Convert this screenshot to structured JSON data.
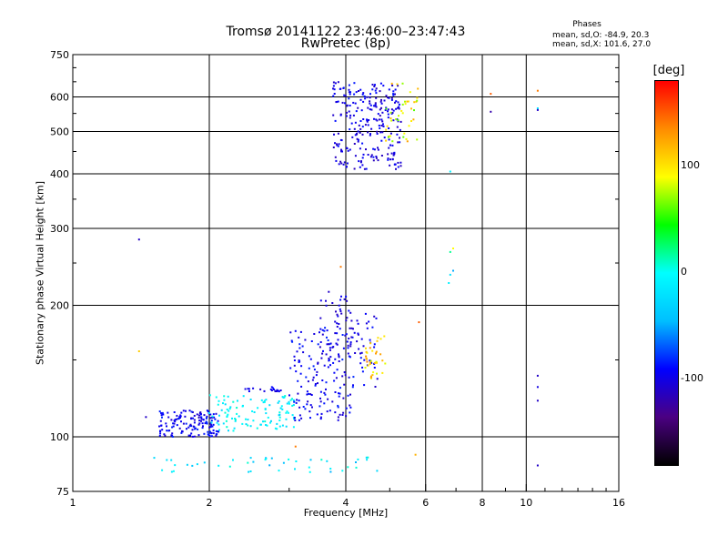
{
  "header": {
    "title_line1": "Tromsø 20141122 23:46:00–23:47:43",
    "title_line2": "RwPretec (8p)"
  },
  "legend": {
    "title": "Phases",
    "stats": [
      "mean, sd,O: -84.9, 20.3",
      "mean, sd,X: 101.6, 27.0"
    ]
  },
  "colorbar": {
    "unit": "[deg]",
    "ticks": [
      "100",
      "0",
      "-100"
    ],
    "tick_values": [
      100,
      0,
      -100
    ],
    "range": [
      -180,
      180
    ],
    "colors": [
      "#000000",
      "#4b0082",
      "#0000ff",
      "#00bfff",
      "#00ffff",
      "#00ff00",
      "#ffff00",
      "#ff8c00",
      "#ff0000"
    ]
  },
  "chart_data": {
    "type": "scatter",
    "title": "Tromsø 20141122 23:46:00–23:47:43",
    "subtitle": "RwPretec (8p)",
    "xlabel": "Frequency [MHz]",
    "ylabel": "Stationary phase Virtual Height [km]",
    "x_scale": "log",
    "y_scale": "log",
    "xlim": [
      1,
      16
    ],
    "ylim": [
      75,
      750
    ],
    "x_ticks": [
      1,
      2,
      4,
      6,
      8,
      10,
      16
    ],
    "x_tick_labels": [
      "1",
      "2",
      "4",
      "6",
      "8",
      "10",
      "16"
    ],
    "y_ticks": [
      75,
      100,
      200,
      300,
      400,
      500,
      600,
      750
    ],
    "y_tick_labels": [
      "75",
      "100",
      "200",
      "300",
      "400",
      "500",
      "600",
      "750"
    ],
    "grid": true,
    "x_gridlines": [
      2,
      4,
      6,
      8,
      10
    ],
    "y_gridlines": [
      100,
      200,
      300,
      400,
      500,
      600
    ],
    "color_by": "phase [deg]",
    "clusters": [
      {
        "x_range": [
          3.75,
          5.3
        ],
        "y_range": [
          410,
          650
        ],
        "n": 260,
        "phase": [
          -115,
          -85
        ]
      },
      {
        "x_range": [
          4.9,
          5.8
        ],
        "y_range": [
          470,
          650
        ],
        "n": 40,
        "phase": [
          60,
          130
        ]
      },
      {
        "x_range": [
          1.55,
          2.1
        ],
        "y_range": [
          100,
          115
        ],
        "n": 150,
        "phase": [
          -110,
          -80
        ]
      },
      {
        "x_range": [
          2.0,
          3.1
        ],
        "y_range": [
          103,
          125
        ],
        "n": 110,
        "phase": [
          -30,
          10
        ]
      },
      {
        "x_range": [
          2.4,
          2.9
        ],
        "y_range": [
          127,
          130
        ],
        "n": 20,
        "phase": [
          -110,
          -90
        ]
      },
      {
        "x_range": [
          3.0,
          4.2
        ],
        "y_range": [
          108,
          180
        ],
        "n": 160,
        "phase": [
          -110,
          -80
        ]
      },
      {
        "x_range": [
          3.5,
          4.1
        ],
        "y_range": [
          150,
          215
        ],
        "n": 40,
        "phase": [
          -115,
          -90
        ]
      },
      {
        "x_range": [
          4.0,
          4.7
        ],
        "y_range": [
          130,
          195
        ],
        "n": 45,
        "phase": [
          -110,
          -85
        ]
      },
      {
        "x_range": [
          4.4,
          4.9
        ],
        "y_range": [
          135,
          170
        ],
        "n": 35,
        "phase": [
          80,
          140
        ]
      },
      {
        "x_range": [
          1.5,
          4.8
        ],
        "y_range": [
          83,
          90
        ],
        "n": 45,
        "phase": [
          -50,
          10
        ]
      }
    ],
    "isolated_points": [
      {
        "x": 1.4,
        "y": 283,
        "phase": -110
      },
      {
        "x": 1.4,
        "y": 157,
        "phase": 110
      },
      {
        "x": 1.45,
        "y": 111,
        "phase": -110
      },
      {
        "x": 3.1,
        "y": 95,
        "phase": 140
      },
      {
        "x": 3.9,
        "y": 245,
        "phase": 140
      },
      {
        "x": 5.7,
        "y": 91,
        "phase": 120
      },
      {
        "x": 5.8,
        "y": 183,
        "phase": 150
      },
      {
        "x": 6.8,
        "y": 405,
        "phase": -10
      },
      {
        "x": 6.9,
        "y": 270,
        "phase": 90
      },
      {
        "x": 6.8,
        "y": 265,
        "phase": 20
      },
      {
        "x": 6.9,
        "y": 240,
        "phase": -50
      },
      {
        "x": 6.8,
        "y": 235,
        "phase": -20
      },
      {
        "x": 6.75,
        "y": 225,
        "phase": -10
      },
      {
        "x": 8.35,
        "y": 610,
        "phase": 150
      },
      {
        "x": 8.35,
        "y": 555,
        "phase": -120
      },
      {
        "x": 10.6,
        "y": 620,
        "phase": 140
      },
      {
        "x": 10.6,
        "y": 565,
        "phase": -20
      },
      {
        "x": 10.6,
        "y": 560,
        "phase": -110
      },
      {
        "x": 10.6,
        "y": 138,
        "phase": -110
      },
      {
        "x": 10.6,
        "y": 130,
        "phase": -100
      },
      {
        "x": 10.6,
        "y": 121,
        "phase": -110
      },
      {
        "x": 10.6,
        "y": 86,
        "phase": -110
      }
    ]
  }
}
